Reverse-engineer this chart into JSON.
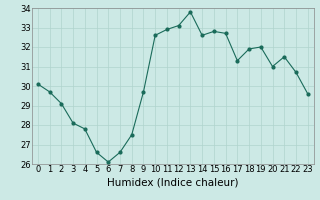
{
  "x": [
    0,
    1,
    2,
    3,
    4,
    5,
    6,
    7,
    8,
    9,
    10,
    11,
    12,
    13,
    14,
    15,
    16,
    17,
    18,
    19,
    20,
    21,
    22,
    23
  ],
  "y": [
    30.1,
    29.7,
    29.1,
    28.1,
    27.8,
    26.6,
    26.1,
    26.6,
    27.5,
    29.7,
    32.6,
    32.9,
    33.1,
    33.8,
    32.6,
    32.8,
    32.7,
    31.3,
    31.9,
    32.0,
    31.0,
    31.5,
    30.7,
    29.6
  ],
  "line_color": "#1a6b5a",
  "marker": "o",
  "marker_size": 2.0,
  "line_width": 0.8,
  "bg_color": "#cce9e5",
  "grid_color": "#b0d4ce",
  "xlabel": "Humidex (Indice chaleur)",
  "xlabel_fontsize": 7.5,
  "tick_fontsize": 6.0,
  "ylim": [
    26,
    34
  ],
  "xlim": [
    -0.5,
    23.5
  ],
  "yticks": [
    26,
    27,
    28,
    29,
    30,
    31,
    32,
    33,
    34
  ],
  "xticks": [
    0,
    1,
    2,
    3,
    4,
    5,
    6,
    7,
    8,
    9,
    10,
    11,
    12,
    13,
    14,
    15,
    16,
    17,
    18,
    19,
    20,
    21,
    22,
    23
  ],
  "spine_color": "#888888"
}
